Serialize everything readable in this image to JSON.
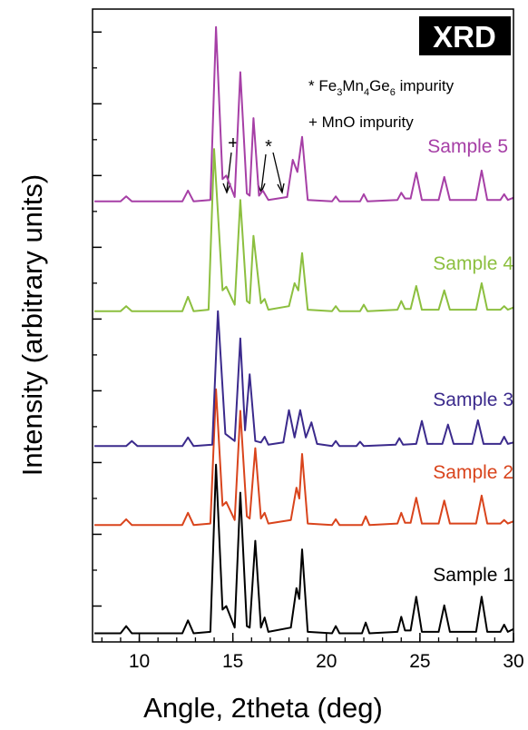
{
  "chart_data": {
    "type": "line",
    "xlabel": "Angle, 2theta (deg)",
    "ylabel": "Intensity (arbitrary units)",
    "badge": "XRD",
    "impurity_legend": [
      {
        "parts": [
          "* Fe",
          "3",
          "Mn",
          "4",
          "Ge",
          "6",
          " impurity"
        ]
      },
      {
        "parts": [
          "+ MnO impurity"
        ]
      }
    ],
    "markers": [
      "+",
      "*"
    ],
    "xlim": [
      7.5,
      30
    ],
    "xticks": [
      10,
      15,
      20,
      25,
      30
    ],
    "ylim": [
      0,
      8.82
    ],
    "yticks": [
      0.5,
      1.5,
      2.5,
      3.5,
      4.5,
      5.5,
      6.5,
      7.5,
      8.5
    ],
    "series": [
      {
        "name": "Sample 1",
        "color": "#000000",
        "x": [
          7.6,
          9.0,
          9.3,
          9.6,
          12.3,
          12.6,
          12.9,
          13.8,
          14.1,
          14.45,
          14.65,
          15.1,
          15.4,
          15.75,
          15.9,
          16.2,
          16.5,
          16.7,
          16.9,
          18.1,
          18.4,
          18.55,
          18.7,
          19.0,
          20.3,
          20.5,
          20.7,
          21.9,
          22.1,
          22.3,
          23.8,
          24.0,
          24.2,
          24.5,
          24.8,
          25.1,
          26.0,
          26.3,
          26.6,
          28.0,
          28.3,
          28.6,
          29.3,
          29.5,
          29.7,
          30.0
        ],
        "values": [
          0.12,
          0.12,
          0.22,
          0.12,
          0.12,
          0.3,
          0.12,
          0.14,
          2.47,
          0.45,
          0.5,
          0.2,
          2.08,
          0.22,
          0.2,
          1.41,
          0.2,
          0.34,
          0.14,
          0.2,
          0.75,
          0.6,
          1.29,
          0.14,
          0.12,
          0.22,
          0.12,
          0.12,
          0.27,
          0.12,
          0.14,
          0.35,
          0.16,
          0.16,
          0.63,
          0.14,
          0.14,
          0.51,
          0.14,
          0.14,
          0.63,
          0.14,
          0.14,
          0.24,
          0.14,
          0.18
        ]
      },
      {
        "name": "Sample 2",
        "color": "#d9441c",
        "x": [
          7.6,
          9.0,
          9.3,
          9.6,
          12.3,
          12.6,
          12.9,
          13.8,
          14.1,
          14.45,
          14.65,
          15.1,
          15.4,
          15.75,
          15.9,
          16.2,
          16.5,
          16.7,
          16.9,
          18.1,
          18.4,
          18.55,
          18.7,
          19.0,
          20.3,
          20.5,
          20.7,
          21.9,
          22.1,
          22.3,
          23.8,
          24.0,
          24.2,
          24.5,
          24.8,
          25.1,
          26.0,
          26.3,
          26.6,
          28.0,
          28.3,
          28.6,
          29.3,
          29.5,
          29.7,
          30.0
        ],
        "values": [
          1.63,
          1.63,
          1.71,
          1.63,
          1.63,
          1.8,
          1.63,
          1.65,
          3.52,
          1.9,
          1.95,
          1.7,
          3.22,
          1.75,
          1.72,
          2.7,
          1.72,
          1.8,
          1.65,
          1.7,
          2.15,
          2.0,
          2.62,
          1.65,
          1.63,
          1.71,
          1.63,
          1.63,
          1.75,
          1.63,
          1.65,
          1.8,
          1.66,
          1.66,
          2.01,
          1.65,
          1.65,
          1.97,
          1.65,
          1.65,
          2.04,
          1.65,
          1.65,
          1.7,
          1.65,
          1.68
        ]
      },
      {
        "name": "Sample 3",
        "color": "#3b2a8c",
        "x": [
          7.6,
          9.3,
          9.6,
          9.9,
          12.3,
          12.6,
          12.9,
          13.9,
          14.2,
          14.6,
          15.1,
          15.4,
          15.65,
          15.9,
          16.2,
          16.5,
          16.7,
          16.9,
          17.7,
          18.0,
          18.3,
          18.6,
          18.9,
          19.2,
          19.5,
          20.3,
          20.5,
          20.7,
          21.6,
          21.8,
          22.0,
          23.7,
          23.9,
          24.1,
          24.8,
          25.1,
          25.4,
          26.2,
          26.5,
          26.8,
          27.8,
          28.1,
          28.4,
          29.3,
          29.5,
          29.7,
          30.0
        ],
        "values": [
          2.73,
          2.73,
          2.8,
          2.73,
          2.73,
          2.85,
          2.73,
          2.75,
          4.61,
          2.9,
          2.8,
          4.23,
          2.95,
          3.73,
          2.8,
          2.78,
          2.86,
          2.75,
          2.78,
          3.23,
          2.85,
          3.23,
          2.85,
          3.06,
          2.76,
          2.73,
          2.8,
          2.73,
          2.73,
          2.79,
          2.73,
          2.75,
          2.84,
          2.75,
          2.76,
          3.08,
          2.76,
          2.76,
          3.03,
          2.76,
          2.76,
          3.09,
          2.76,
          2.76,
          2.86,
          2.76,
          2.78
        ]
      },
      {
        "name": "Sample 4",
        "color": "#8cbf3f",
        "x": [
          7.6,
          9.0,
          9.3,
          9.6,
          12.3,
          12.6,
          12.9,
          13.7,
          14.0,
          14.45,
          14.65,
          15.1,
          15.4,
          15.75,
          15.9,
          16.1,
          16.5,
          16.7,
          16.9,
          18.0,
          18.3,
          18.5,
          18.7,
          19.0,
          20.3,
          20.5,
          20.7,
          21.8,
          22.0,
          22.2,
          23.8,
          24.0,
          24.2,
          24.5,
          24.8,
          25.1,
          26.0,
          26.3,
          26.6,
          28.0,
          28.3,
          28.6,
          29.3,
          29.5,
          29.7,
          30.0
        ],
        "values": [
          4.61,
          4.61,
          4.68,
          4.61,
          4.61,
          4.81,
          4.61,
          4.63,
          6.87,
          4.9,
          4.95,
          4.7,
          6.16,
          4.75,
          4.72,
          5.66,
          4.72,
          4.78,
          4.63,
          4.68,
          5.0,
          4.9,
          5.42,
          4.63,
          4.61,
          4.68,
          4.61,
          4.61,
          4.7,
          4.61,
          4.63,
          4.75,
          4.64,
          4.64,
          4.96,
          4.63,
          4.63,
          4.9,
          4.63,
          4.63,
          5.0,
          4.63,
          4.63,
          4.68,
          4.63,
          4.66
        ]
      },
      {
        "name": "Sample 5",
        "color": "#a63fa6",
        "x": [
          7.6,
          9.0,
          9.3,
          9.6,
          12.3,
          12.6,
          12.9,
          13.8,
          14.1,
          14.45,
          14.65,
          15.1,
          15.4,
          15.75,
          15.9,
          16.1,
          16.4,
          16.6,
          16.9,
          17.9,
          18.2,
          18.45,
          18.7,
          19.0,
          20.3,
          20.5,
          20.7,
          21.8,
          22.0,
          22.2,
          23.8,
          24.0,
          24.2,
          24.5,
          24.8,
          25.1,
          26.0,
          26.3,
          26.6,
          28.0,
          28.3,
          28.6,
          29.3,
          29.5,
          29.7,
          30.0
        ],
        "values": [
          6.14,
          6.14,
          6.21,
          6.14,
          6.14,
          6.29,
          6.14,
          6.16,
          8.57,
          6.45,
          6.5,
          6.2,
          7.94,
          6.25,
          6.22,
          7.3,
          6.22,
          6.29,
          6.16,
          6.2,
          6.72,
          6.55,
          7.04,
          6.16,
          6.14,
          6.21,
          6.14,
          6.14,
          6.24,
          6.14,
          6.16,
          6.26,
          6.18,
          6.18,
          6.54,
          6.16,
          6.16,
          6.48,
          6.16,
          6.16,
          6.57,
          6.16,
          6.16,
          6.24,
          6.16,
          6.19
        ]
      }
    ]
  }
}
